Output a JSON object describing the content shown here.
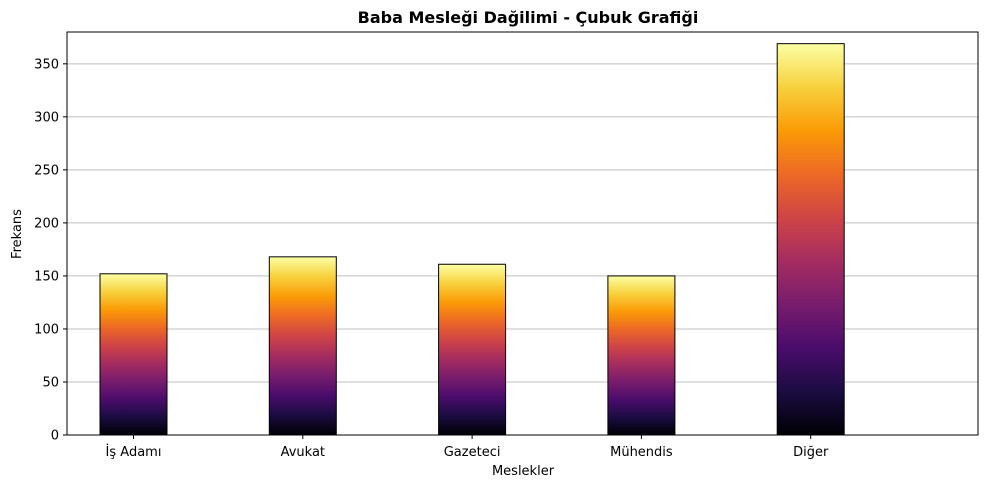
{
  "chart_data": {
    "type": "bar",
    "title": "Baba Mesleği Dağilimi - Çubuk Grafiği",
    "xlabel": "Meslekler",
    "ylabel": "Frekans",
    "categories": [
      "İş Adamı",
      "Avukat",
      "Gazeteci",
      "Mühendis",
      "Diğer"
    ],
    "values": [
      152,
      168,
      161,
      150,
      369
    ],
    "ylim": [
      0,
      380
    ],
    "yticks": [
      0,
      50,
      100,
      150,
      200,
      250,
      300,
      350
    ],
    "grid": "y",
    "legend": "none",
    "colormap": "inferno",
    "colors": {
      "gradient_stops": [
        "#000004",
        "#1b0c41",
        "#4a0c6b",
        "#781c6d",
        "#a52c60",
        "#cf4446",
        "#ed6925",
        "#fb9b06",
        "#f7d13d",
        "#fcffa4"
      ],
      "bar_edge": "#000000",
      "grid": "#c0c0c0"
    }
  }
}
